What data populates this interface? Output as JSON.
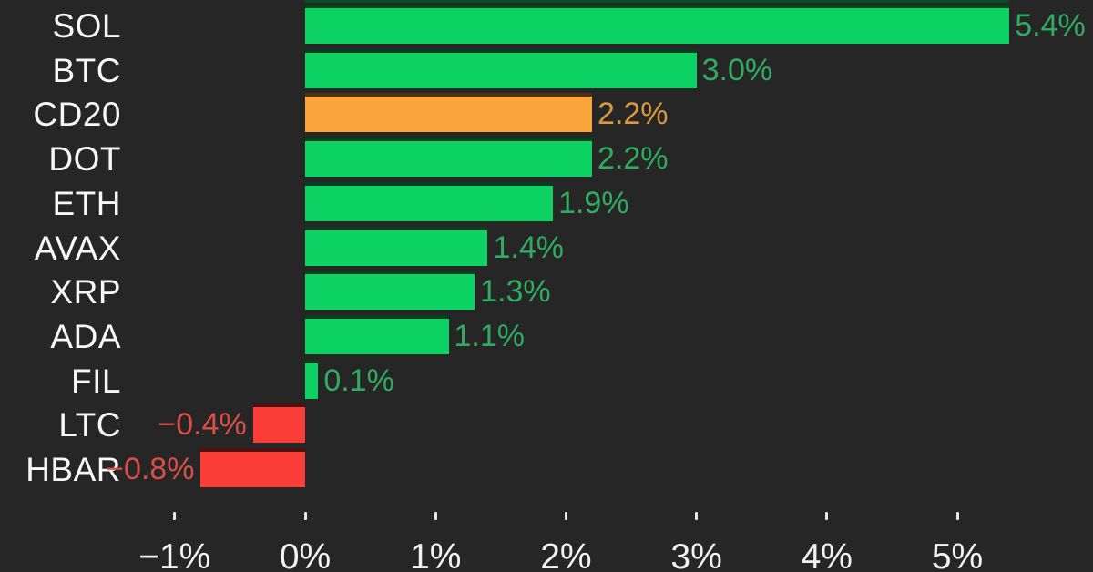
{
  "chart_data": {
    "type": "bar",
    "orientation": "horizontal",
    "title": "",
    "categories": [
      "SOL",
      "BTC",
      "CD20",
      "DOT",
      "ETH",
      "AVAX",
      "XRP",
      "ADA",
      "FIL",
      "LTC",
      "HBAR"
    ],
    "values": [
      5.4,
      3.0,
      2.2,
      2.2,
      1.9,
      1.4,
      1.3,
      1.1,
      0.1,
      -0.4,
      -0.8
    ],
    "value_labels": [
      "5.4%",
      "3.0%",
      "2.2%",
      "2.2%",
      "1.9%",
      "1.4%",
      "1.3%",
      "1.1%",
      "0.1%",
      "−0.4%",
      "−0.8%"
    ],
    "bar_color_roles": [
      "positive",
      "positive",
      "benchmark",
      "positive",
      "positive",
      "positive",
      "positive",
      "positive",
      "positive",
      "negative",
      "negative"
    ],
    "x_axis": {
      "ticks": [
        -1,
        0,
        1,
        2,
        3,
        4,
        5
      ],
      "tick_labels": [
        "−1%",
        "0%",
        "1%",
        "2%",
        "3%",
        "4%",
        "5%"
      ]
    },
    "xlim": [
      -1.45,
      6.05
    ],
    "grid": false,
    "legend": false
  },
  "colors": {
    "background": "#262627",
    "positive_bar": "#0cd263",
    "benchmark_bar": "#f9a53c",
    "negative_bar": "#fb3d38",
    "positive_label": "#30ac60",
    "benchmark_label": "#d89a41",
    "negative_label": "#d94f48",
    "category_text": "#f7f7f7",
    "axis_text": "#f2f2f2",
    "tick_mark": "#e8e8e8",
    "cropped_bar_remnant": "#0e4a28"
  }
}
